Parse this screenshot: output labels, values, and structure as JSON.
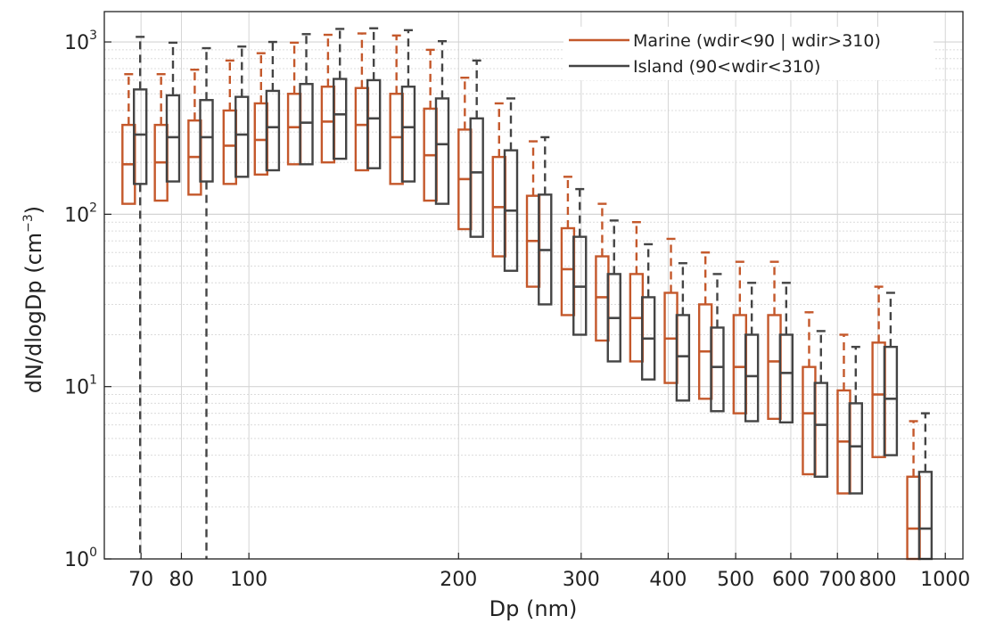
{
  "chart_data": {
    "type": "boxplot",
    "xlabel": "Dp (nm)",
    "ylabel": "dN/dlogDp (cm",
    "ylabel_exp": "−3",
    "ylabel_close": ")",
    "x_scale": "log",
    "y_scale": "log",
    "xlim": [
      62,
      1060
    ],
    "ylim": [
      1,
      1500
    ],
    "grid": true,
    "legend_position": "top-right",
    "x_ticks": [
      {
        "value": 70,
        "label": "70"
      },
      {
        "value": 80,
        "label": "80"
      },
      {
        "value": 100,
        "label": "100"
      },
      {
        "value": 200,
        "label": "200"
      },
      {
        "value": 300,
        "label": "300"
      },
      {
        "value": 400,
        "label": "400"
      },
      {
        "value": 500,
        "label": "500"
      },
      {
        "value": 600,
        "label": "600"
      },
      {
        "value": 700,
        "label": "700"
      },
      {
        "value": 800,
        "label": "800"
      },
      {
        "value": 1000,
        "label": "1000"
      }
    ],
    "y_ticks": [
      {
        "value": 1,
        "base": "10",
        "exp": "0"
      },
      {
        "value": 10,
        "base": "10",
        "exp": "1"
      },
      {
        "value": 100,
        "base": "10",
        "exp": "2"
      },
      {
        "value": 1000,
        "base": "10",
        "exp": "3"
      }
    ],
    "series": [
      {
        "name": "Marine (wdir<90 | wdir>310)",
        "color": "#c4582b",
        "boxes": [
          {
            "x": 67.2,
            "whisker_high": 650,
            "q3": 330,
            "median": 195,
            "q1": 115
          },
          {
            "x": 74.8,
            "whisker_high": 650,
            "q3": 330,
            "median": 200,
            "q1": 120
          },
          {
            "x": 83.6,
            "whisker_high": 690,
            "q3": 350,
            "median": 215,
            "q1": 130
          },
          {
            "x": 93.9,
            "whisker_high": 780,
            "q3": 400,
            "median": 250,
            "q1": 150
          },
          {
            "x": 104.1,
            "whisker_high": 860,
            "q3": 440,
            "median": 270,
            "q1": 170
          },
          {
            "x": 116.2,
            "whisker_high": 990,
            "q3": 500,
            "median": 320,
            "q1": 195
          },
          {
            "x": 129.9,
            "whisker_high": 1100,
            "q3": 550,
            "median": 345,
            "q1": 200
          },
          {
            "x": 145.3,
            "whisker_high": 1120,
            "q3": 540,
            "median": 330,
            "q1": 180
          },
          {
            "x": 162.9,
            "whisker_high": 1090,
            "q3": 500,
            "median": 280,
            "q1": 150
          },
          {
            "x": 182.2,
            "whisker_high": 900,
            "q3": 410,
            "median": 220,
            "q1": 120
          },
          {
            "x": 204.2,
            "whisker_high": 620,
            "q3": 310,
            "median": 160,
            "q1": 82
          },
          {
            "x": 228.7,
            "whisker_high": 440,
            "q3": 215,
            "median": 110,
            "q1": 57
          },
          {
            "x": 256.0,
            "whisker_high": 265,
            "q3": 128,
            "median": 70,
            "q1": 38
          },
          {
            "x": 287.1,
            "whisker_high": 165,
            "q3": 83,
            "median": 48,
            "q1": 26
          },
          {
            "x": 321.6,
            "whisker_high": 115,
            "q3": 57,
            "median": 33,
            "q1": 18.5
          },
          {
            "x": 360.2,
            "whisker_high": 90,
            "q3": 45,
            "median": 25,
            "q1": 14
          },
          {
            "x": 403.7,
            "whisker_high": 72,
            "q3": 35,
            "median": 19,
            "q1": 10.5
          },
          {
            "x": 452.4,
            "whisker_high": 60,
            "q3": 30,
            "median": 16,
            "q1": 8.5
          },
          {
            "x": 507.0,
            "whisker_high": 53,
            "q3": 26,
            "median": 13,
            "q1": 7
          },
          {
            "x": 568.3,
            "whisker_high": 53,
            "q3": 26,
            "median": 14,
            "q1": 6.5
          },
          {
            "x": 637.4,
            "whisker_high": 27,
            "q3": 13,
            "median": 7,
            "q1": 3.1
          },
          {
            "x": 715.1,
            "whisker_high": 20,
            "q3": 9.5,
            "median": 4.8,
            "q1": 2.4
          },
          {
            "x": 802.5,
            "whisker_high": 38,
            "q3": 18,
            "median": 9,
            "q1": 3.9
          },
          {
            "x": 900.2,
            "whisker_high": 6.3,
            "q3": 3,
            "median": 1.5,
            "q1": 1
          }
        ]
      },
      {
        "name": "Island (90<wdir<310)",
        "color": "#444444",
        "boxes": [
          {
            "x": 69.8,
            "whisker_high": 1070,
            "q3": 530,
            "median": 290,
            "q1": 150,
            "whisker_low": 1
          },
          {
            "x": 77.8,
            "whisker_high": 990,
            "q3": 490,
            "median": 280,
            "q1": 155
          },
          {
            "x": 86.9,
            "whisker_high": 920,
            "q3": 460,
            "median": 280,
            "q1": 155,
            "whisker_low": 1
          },
          {
            "x": 97.7,
            "whisker_high": 940,
            "q3": 480,
            "median": 290,
            "q1": 165
          },
          {
            "x": 108.2,
            "whisker_high": 1000,
            "q3": 520,
            "median": 320,
            "q1": 180
          },
          {
            "x": 120.9,
            "whisker_high": 1110,
            "q3": 570,
            "median": 340,
            "q1": 195
          },
          {
            "x": 135.1,
            "whisker_high": 1190,
            "q3": 610,
            "median": 380,
            "q1": 210
          },
          {
            "x": 151.1,
            "whisker_high": 1200,
            "q3": 600,
            "median": 360,
            "q1": 185
          },
          {
            "x": 169.4,
            "whisker_high": 1170,
            "q3": 550,
            "median": 320,
            "q1": 155
          },
          {
            "x": 189.5,
            "whisker_high": 1010,
            "q3": 470,
            "median": 255,
            "q1": 115
          },
          {
            "x": 212.4,
            "whisker_high": 780,
            "q3": 360,
            "median": 175,
            "q1": 74
          },
          {
            "x": 237.8,
            "whisker_high": 470,
            "q3": 235,
            "median": 105,
            "q1": 47
          },
          {
            "x": 266.2,
            "whisker_high": 280,
            "q3": 130,
            "median": 62,
            "q1": 30
          },
          {
            "x": 298.6,
            "whisker_high": 140,
            "q3": 74,
            "median": 38,
            "q1": 20
          },
          {
            "x": 334.5,
            "whisker_high": 92,
            "q3": 45,
            "median": 25,
            "q1": 14
          },
          {
            "x": 374.6,
            "whisker_high": 67,
            "q3": 33,
            "median": 19,
            "q1": 11
          },
          {
            "x": 419.9,
            "whisker_high": 52,
            "q3": 26,
            "median": 15,
            "q1": 8.3
          },
          {
            "x": 470.5,
            "whisker_high": 45,
            "q3": 22,
            "median": 13,
            "q1": 7.2
          },
          {
            "x": 527.3,
            "whisker_high": 40,
            "q3": 20,
            "median": 11.5,
            "q1": 6.3
          },
          {
            "x": 591.0,
            "whisker_high": 40,
            "q3": 20,
            "median": 12,
            "q1": 6.2
          },
          {
            "x": 662.9,
            "whisker_high": 21,
            "q3": 10.5,
            "median": 6,
            "q1": 3
          },
          {
            "x": 743.7,
            "whisker_high": 17,
            "q3": 8,
            "median": 4.5,
            "q1": 2.4
          },
          {
            "x": 834.6,
            "whisker_high": 35,
            "q3": 17,
            "median": 8.5,
            "q1": 4
          },
          {
            "x": 936.2,
            "whisker_high": 7,
            "q3": 3.2,
            "median": 1.5,
            "q1": 1
          }
        ]
      }
    ]
  }
}
